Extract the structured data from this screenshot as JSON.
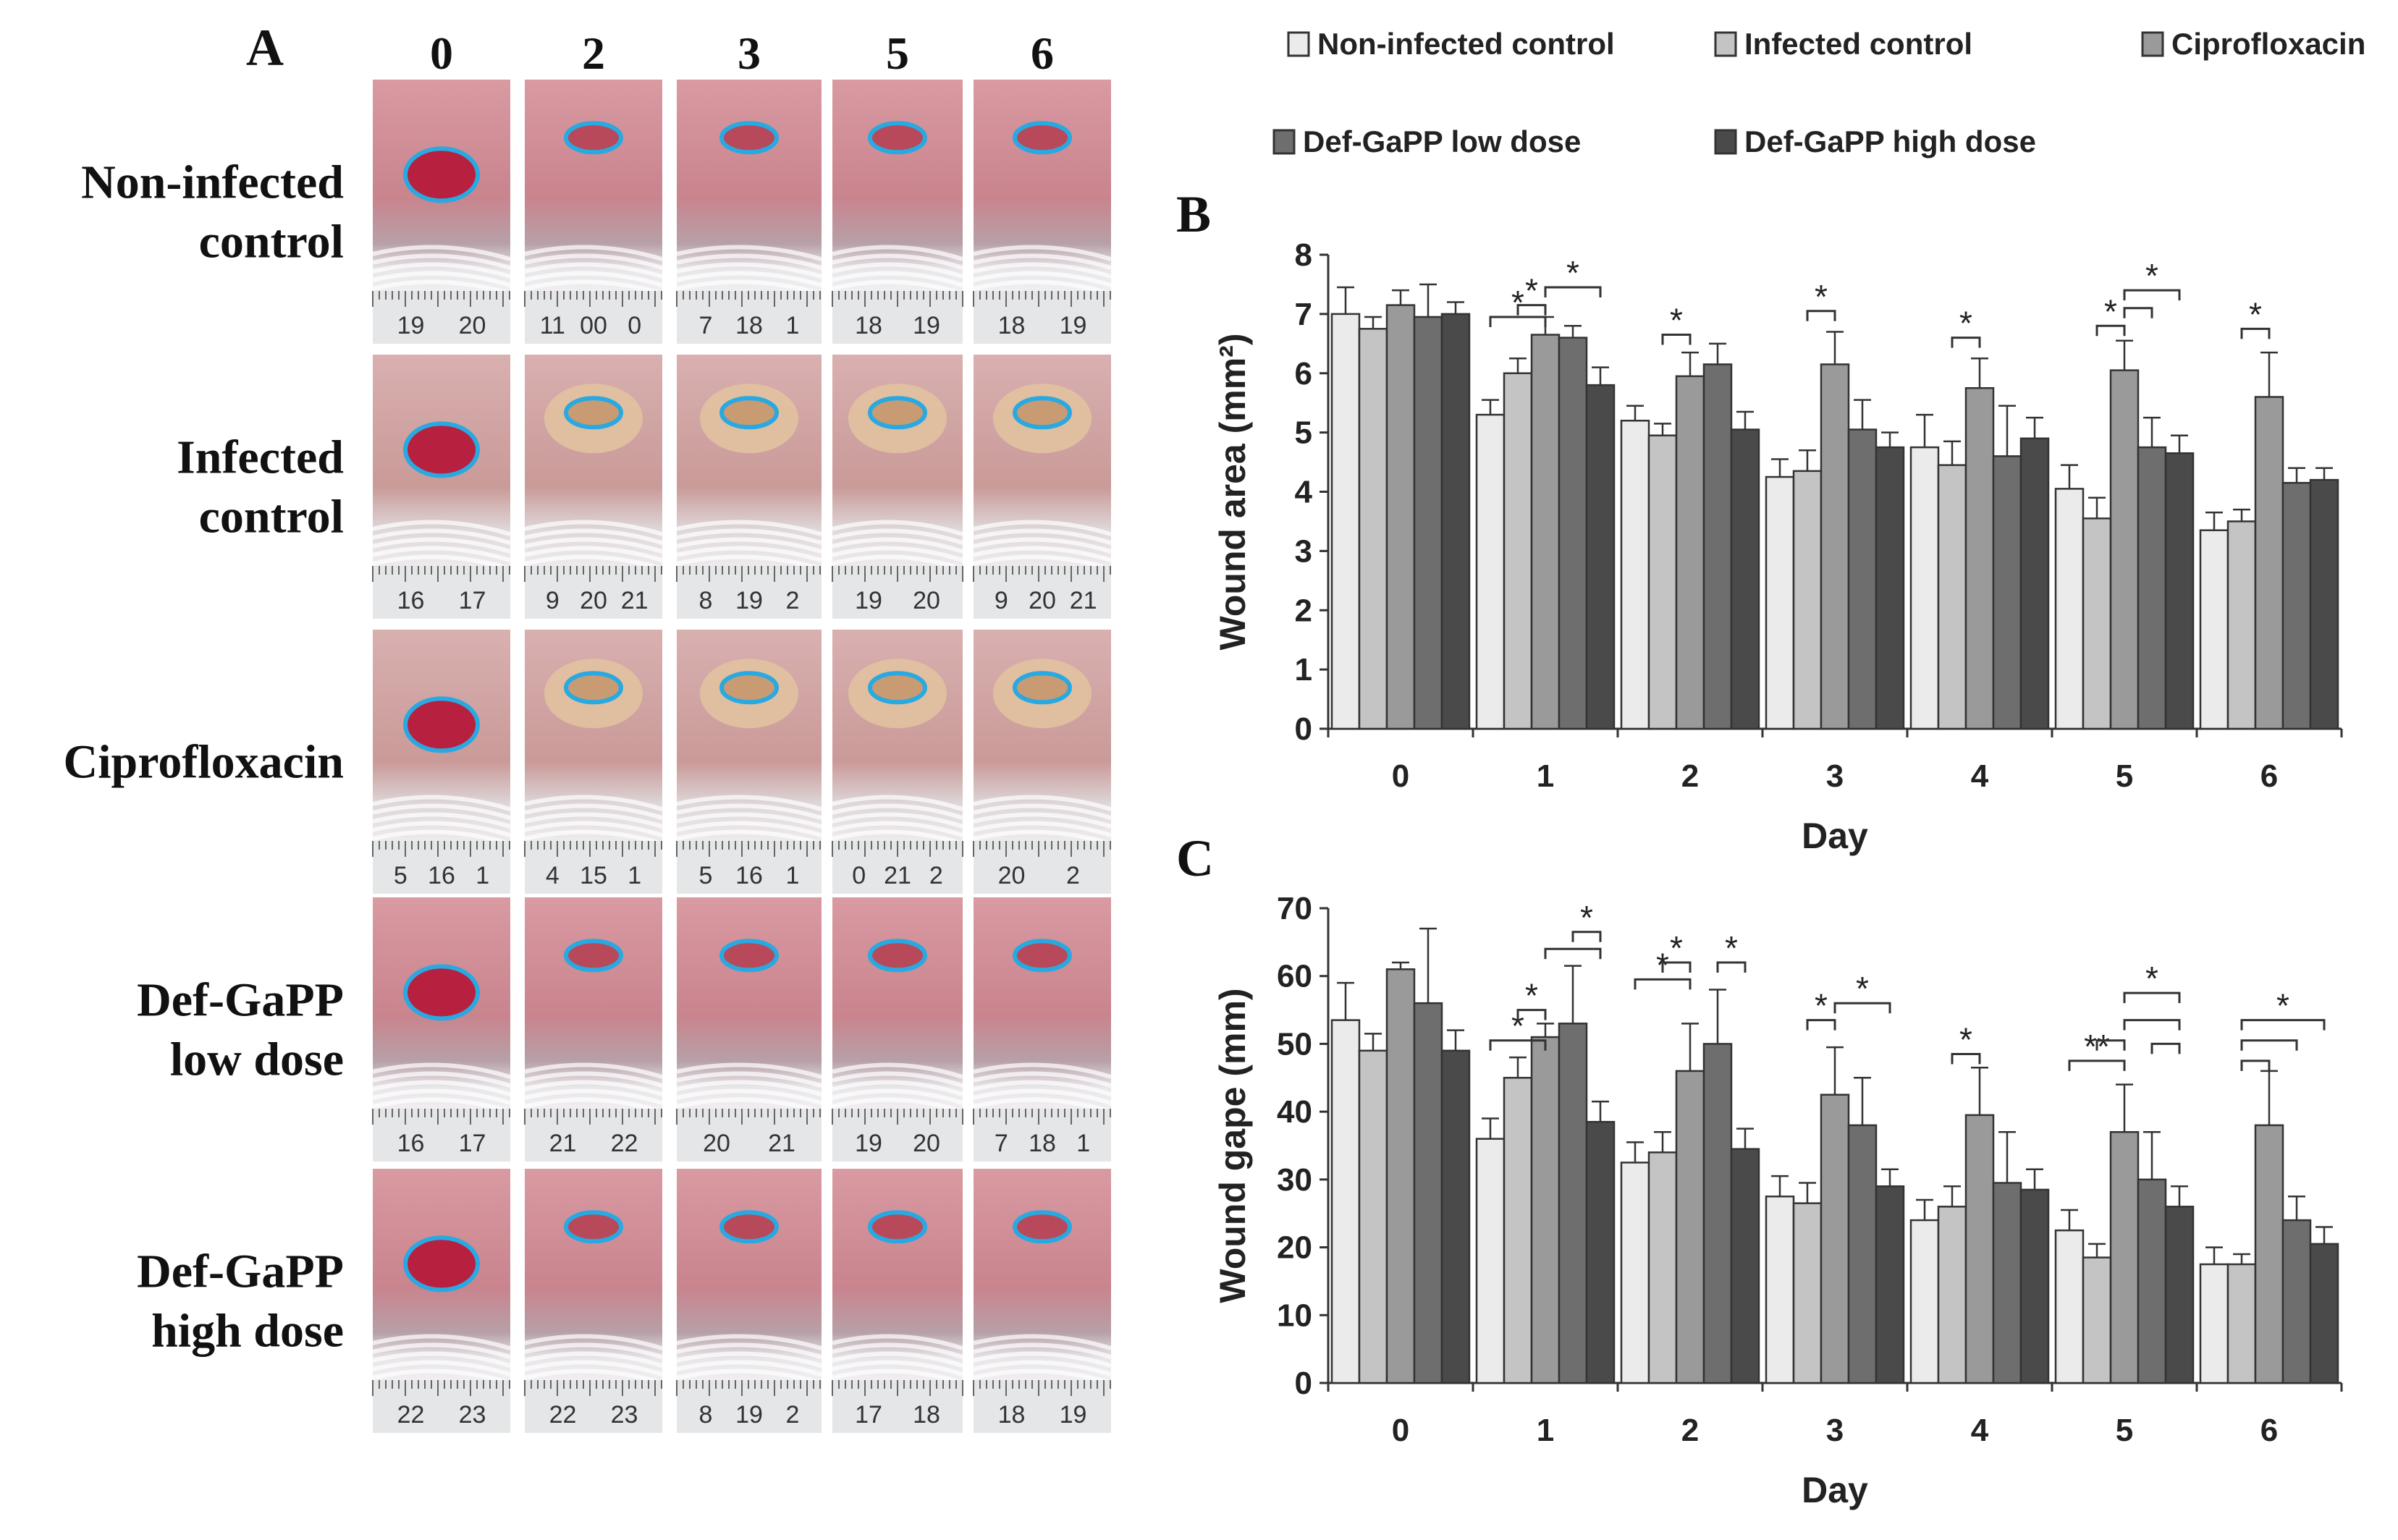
{
  "panel_a": {
    "letter": "A",
    "day_headers": [
      "0",
      "2",
      "3",
      "5",
      "6"
    ],
    "rows": [
      {
        "label_lines": [
          "Non-infected",
          "control"
        ],
        "ruler_numbers": [
          [
            "19",
            "20"
          ],
          [
            "11",
            "00",
            "0"
          ],
          [
            "7",
            "18",
            "1"
          ],
          [
            "18",
            "19"
          ],
          [
            "18",
            "19"
          ]
        ],
        "infected": false
      },
      {
        "label_lines": [
          "Infected",
          "control"
        ],
        "ruler_numbers": [
          [
            "16",
            "17"
          ],
          [
            "9",
            "20",
            "21"
          ],
          [
            "8",
            "19",
            "2"
          ],
          [
            "19",
            "20"
          ],
          [
            "9",
            "20",
            "21"
          ]
        ],
        "infected": true
      },
      {
        "label_lines": [
          "Ciprofloxacin"
        ],
        "ruler_numbers": [
          [
            "5",
            "16",
            "1"
          ],
          [
            "4",
            "15",
            "1"
          ],
          [
            "5",
            "16",
            "1"
          ],
          [
            "0",
            "21",
            "2"
          ],
          [
            "20",
            "2"
          ]
        ],
        "infected": true
      },
      {
        "label_lines": [
          "Def-GaPP",
          "low dose"
        ],
        "ruler_numbers": [
          [
            "16",
            "17"
          ],
          [
            "21",
            "22"
          ],
          [
            "20",
            "21"
          ],
          [
            "19",
            "20"
          ],
          [
            "7",
            "18",
            "1"
          ]
        ],
        "infected": false
      },
      {
        "label_lines": [
          "Def-GaPP",
          "high dose"
        ],
        "ruler_numbers": [
          [
            "22",
            "23"
          ],
          [
            "22",
            "23"
          ],
          [
            "8",
            "19",
            "2"
          ],
          [
            "17",
            "18"
          ],
          [
            "18",
            "19"
          ]
        ],
        "infected": false
      }
    ]
  },
  "legend": [
    {
      "name": "Non-infected control",
      "color": "#ebebeb"
    },
    {
      "name": "Infected control",
      "color": "#c4c4c4"
    },
    {
      "name": "Ciprofloxacin",
      "color": "#9a9a9a"
    },
    {
      "name": "Def-GaPP low dose",
      "color": "#6e6e6e"
    },
    {
      "name": "Def-GaPP high dose",
      "color": "#4a4a4a"
    }
  ],
  "chart_data": [
    {
      "panel": "B",
      "type": "bar",
      "categories": [
        "0",
        "1",
        "2",
        "3",
        "4",
        "5",
        "6"
      ],
      "xlabel": "Day",
      "ylabel": "Wound area  (mm²)",
      "ylim": [
        0,
        8
      ],
      "yticks": [
        0,
        1,
        2,
        3,
        4,
        5,
        6,
        7,
        8
      ],
      "series": [
        {
          "name": "Non-infected control",
          "values": [
            7.0,
            5.3,
            5.2,
            4.25,
            4.75,
            4.05,
            3.35
          ],
          "errors": [
            0.45,
            0.25,
            0.25,
            0.3,
            0.55,
            0.4,
            0.3
          ]
        },
        {
          "name": "Infected control",
          "values": [
            6.75,
            6.0,
            4.95,
            4.35,
            4.45,
            3.55,
            3.5
          ],
          "errors": [
            0.2,
            0.25,
            0.2,
            0.35,
            0.4,
            0.35,
            0.2
          ]
        },
        {
          "name": "Ciprofloxacin",
          "values": [
            7.15,
            6.65,
            5.95,
            6.15,
            5.75,
            6.05,
            5.6
          ],
          "errors": [
            0.25,
            0.3,
            0.4,
            0.55,
            0.5,
            0.5,
            0.75
          ]
        },
        {
          "name": "Def-GaPP low dose",
          "values": [
            6.95,
            6.6,
            6.15,
            5.05,
            4.6,
            4.75,
            4.15
          ],
          "errors": [
            0.55,
            0.2,
            0.35,
            0.5,
            0.85,
            0.5,
            0.25
          ]
        },
        {
          "name": "Def-GaPP high dose",
          "values": [
            7.0,
            5.8,
            5.05,
            4.75,
            4.9,
            4.65,
            4.2
          ],
          "errors": [
            0.2,
            0.3,
            0.3,
            0.25,
            0.35,
            0.3,
            0.2
          ]
        }
      ],
      "annotations": [
        {
          "text": "*",
          "day": 1,
          "from": 0,
          "to": 2,
          "y": 6.95
        },
        {
          "text": "*",
          "day": 1,
          "from": 1,
          "to": 2,
          "y": 7.15
        },
        {
          "text": "*",
          "day": 1,
          "from": 2,
          "to": 4,
          "y": 7.45
        },
        {
          "text": "*",
          "day": 2,
          "from": 1,
          "to": 2,
          "y": 6.65
        },
        {
          "text": "*",
          "day": 3,
          "from": 1,
          "to": 2,
          "y": 7.05
        },
        {
          "text": "*",
          "day": 4,
          "from": 1,
          "to": 2,
          "y": 6.6
        },
        {
          "text": "*",
          "day": 5,
          "from": 1,
          "to": 2,
          "y": 6.8
        },
        {
          "text": "",
          "day": 5,
          "from": 2,
          "to": 3,
          "y": 7.1
        },
        {
          "text": "*",
          "day": 5,
          "from": 2,
          "to": 4,
          "y": 7.4
        },
        {
          "text": "*",
          "day": 6,
          "from": 1,
          "to": 2,
          "y": 6.75
        }
      ]
    },
    {
      "panel": "C",
      "type": "bar",
      "categories": [
        "0",
        "1",
        "2",
        "3",
        "4",
        "5",
        "6"
      ],
      "xlabel": "Day",
      "ylabel": "Wound gape (mm)",
      "ylim": [
        0,
        70
      ],
      "yticks": [
        0,
        10,
        20,
        30,
        40,
        50,
        60,
        70
      ],
      "series": [
        {
          "name": "Non-infected control",
          "values": [
            53.5,
            36.0,
            32.5,
            27.5,
            24.0,
            22.5,
            17.5
          ],
          "errors": [
            5.5,
            3.0,
            3.0,
            3.0,
            3.0,
            3.0,
            2.5
          ]
        },
        {
          "name": "Infected control",
          "values": [
            49.0,
            45.0,
            34.0,
            26.5,
            26.0,
            18.5,
            17.5
          ],
          "errors": [
            2.5,
            3.0,
            3.0,
            3.0,
            3.0,
            2.0,
            1.5
          ]
        },
        {
          "name": "Ciprofloxacin",
          "values": [
            61.0,
            51.0,
            46.0,
            42.5,
            39.5,
            37.0,
            38.0
          ],
          "errors": [
            1.0,
            2.0,
            7.0,
            7.0,
            7.0,
            7.0,
            8.0
          ]
        },
        {
          "name": "Def-GaPP low dose",
          "values": [
            56.0,
            53.0,
            50.0,
            38.0,
            29.5,
            30.0,
            24.0
          ],
          "errors": [
            11.0,
            8.5,
            8.0,
            7.0,
            7.5,
            7.0,
            3.5
          ]
        },
        {
          "name": "Def-GaPP high dose",
          "values": [
            49.0,
            38.5,
            34.5,
            29.0,
            28.5,
            26.0,
            20.5
          ],
          "errors": [
            3.0,
            3.0,
            3.0,
            2.5,
            3.0,
            3.0,
            2.5
          ]
        }
      ],
      "annotations": [
        {
          "text": "*",
          "day": 1,
          "from": 0,
          "to": 2,
          "y": 50.5
        },
        {
          "text": "*",
          "day": 1,
          "from": 1,
          "to": 2,
          "y": 55.0
        },
        {
          "text": "",
          "day": 1,
          "from": 2,
          "to": 4,
          "y": 64.0
        },
        {
          "text": "*",
          "day": 1,
          "from": 3,
          "to": 4,
          "y": 66.5
        },
        {
          "text": "*",
          "day": 2,
          "from": 0,
          "to": 2,
          "y": 59.5
        },
        {
          "text": "*",
          "day": 2,
          "from": 1,
          "to": 2,
          "y": 62.0
        },
        {
          "text": "*",
          "day": 2,
          "from": 3,
          "to": 4,
          "y": 62.0
        },
        {
          "text": "*",
          "day": 3,
          "from": 1,
          "to": 2,
          "y": 53.5
        },
        {
          "text": "*",
          "day": 3,
          "from": 2,
          "to": 4,
          "y": 56.0
        },
        {
          "text": "*",
          "day": 4,
          "from": 1,
          "to": 2,
          "y": 48.5
        },
        {
          "text": "**",
          "day": 5,
          "from": 0,
          "to": 2,
          "y": 47.5
        },
        {
          "text": "",
          "day": 5,
          "from": 1,
          "to": 2,
          "y": 50.5
        },
        {
          "text": "",
          "day": 5,
          "from": 3,
          "to": 4,
          "y": 50.0
        },
        {
          "text": "",
          "day": 5,
          "from": 2,
          "to": 4,
          "y": 53.5
        },
        {
          "text": "*",
          "day": 5,
          "from": 2,
          "to": 4,
          "y": 57.5
        },
        {
          "text": "",
          "day": 6,
          "from": 1,
          "to": 2,
          "y": 47.5
        },
        {
          "text": "",
          "day": 6,
          "from": 1,
          "to": 3,
          "y": 50.5
        },
        {
          "text": "*",
          "day": 6,
          "from": 1,
          "to": 4,
          "y": 53.5
        }
      ]
    }
  ]
}
